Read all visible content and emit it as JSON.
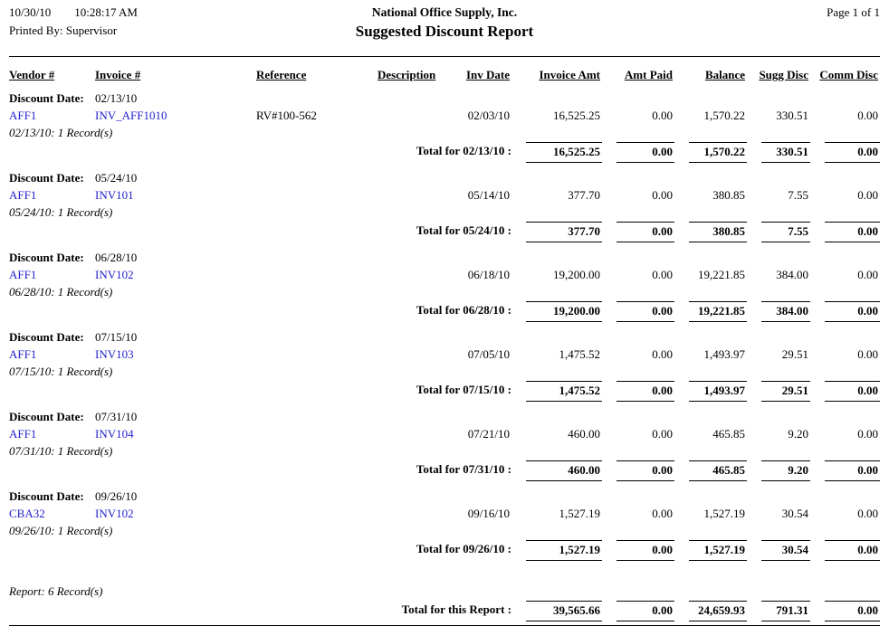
{
  "colors": {
    "link_blue": "#2222CC"
  },
  "header": {
    "date": "10/30/10",
    "time": "10:28:17 AM",
    "printed_by": "Printed By: Supervisor",
    "company": "National Office Supply, Inc.",
    "title": "Suggested Discount Report",
    "page": "Page 1 of  1"
  },
  "labels": {
    "discount_date": "Discount Date:"
  },
  "columns": [
    "Vendor #",
    "Invoice #",
    "Reference",
    "Description",
    "Inv Date",
    "Invoice Amt",
    "Amt Paid",
    "Balance",
    "Sugg Disc",
    "Comm Disc"
  ],
  "groups": [
    {
      "discount_date": "02/13/10",
      "rows": [
        {
          "vendor": "AFF1",
          "invoice": "INV_AFF1010",
          "reference": "RV#100-562",
          "description": "",
          "inv_date": "02/03/10",
          "invoice_amt": "16,525.25",
          "amt_paid": "0.00",
          "balance": "1,570.22",
          "sugg_disc": "330.51",
          "comm_disc": "0.00"
        }
      ],
      "record_note": "02/13/10: 1 Record(s)",
      "total_label": "Total for 02/13/10 :",
      "totals": {
        "invoice_amt": "16,525.25",
        "amt_paid": "0.00",
        "balance": "1,570.22",
        "sugg_disc": "330.51",
        "comm_disc": "0.00"
      }
    },
    {
      "discount_date": "05/24/10",
      "rows": [
        {
          "vendor": "AFF1",
          "invoice": "INV101",
          "reference": "",
          "description": "",
          "inv_date": "05/14/10",
          "invoice_amt": "377.70",
          "amt_paid": "0.00",
          "balance": "380.85",
          "sugg_disc": "7.55",
          "comm_disc": "0.00"
        }
      ],
      "record_note": "05/24/10: 1 Record(s)",
      "total_label": "Total for 05/24/10 :",
      "totals": {
        "invoice_amt": "377.70",
        "amt_paid": "0.00",
        "balance": "380.85",
        "sugg_disc": "7.55",
        "comm_disc": "0.00"
      }
    },
    {
      "discount_date": "06/28/10",
      "rows": [
        {
          "vendor": "AFF1",
          "invoice": "INV102",
          "reference": "",
          "description": "",
          "inv_date": "06/18/10",
          "invoice_amt": "19,200.00",
          "amt_paid": "0.00",
          "balance": "19,221.85",
          "sugg_disc": "384.00",
          "comm_disc": "0.00"
        }
      ],
      "record_note": "06/28/10: 1 Record(s)",
      "total_label": "Total for 06/28/10 :",
      "totals": {
        "invoice_amt": "19,200.00",
        "amt_paid": "0.00",
        "balance": "19,221.85",
        "sugg_disc": "384.00",
        "comm_disc": "0.00"
      }
    },
    {
      "discount_date": "07/15/10",
      "rows": [
        {
          "vendor": "AFF1",
          "invoice": "INV103",
          "reference": "",
          "description": "",
          "inv_date": "07/05/10",
          "invoice_amt": "1,475.52",
          "amt_paid": "0.00",
          "balance": "1,493.97",
          "sugg_disc": "29.51",
          "comm_disc": "0.00"
        }
      ],
      "record_note": "07/15/10: 1 Record(s)",
      "total_label": "Total for 07/15/10 :",
      "totals": {
        "invoice_amt": "1,475.52",
        "amt_paid": "0.00",
        "balance": "1,493.97",
        "sugg_disc": "29.51",
        "comm_disc": "0.00"
      }
    },
    {
      "discount_date": "07/31/10",
      "rows": [
        {
          "vendor": "AFF1",
          "invoice": "INV104",
          "reference": "",
          "description": "",
          "inv_date": "07/21/10",
          "invoice_amt": "460.00",
          "amt_paid": "0.00",
          "balance": "465.85",
          "sugg_disc": "9.20",
          "comm_disc": "0.00"
        }
      ],
      "record_note": "07/31/10: 1 Record(s)",
      "total_label": "Total for 07/31/10 :",
      "totals": {
        "invoice_amt": "460.00",
        "amt_paid": "0.00",
        "balance": "465.85",
        "sugg_disc": "9.20",
        "comm_disc": "0.00"
      }
    },
    {
      "discount_date": "09/26/10",
      "rows": [
        {
          "vendor": "CBA32",
          "invoice": "INV102",
          "reference": "",
          "description": "",
          "inv_date": "09/16/10",
          "invoice_amt": "1,527.19",
          "amt_paid": "0.00",
          "balance": "1,527.19",
          "sugg_disc": "30.54",
          "comm_disc": "0.00"
        }
      ],
      "record_note": "09/26/10: 1 Record(s)",
      "total_label": "Total for 09/26/10 :",
      "totals": {
        "invoice_amt": "1,527.19",
        "amt_paid": "0.00",
        "balance": "1,527.19",
        "sugg_disc": "30.54",
        "comm_disc": "0.00"
      }
    }
  ],
  "footer": {
    "record_note": "Report: 6 Record(s)",
    "total_label": "Total for this Report :",
    "totals": {
      "invoice_amt": "39,565.66",
      "amt_paid": "0.00",
      "balance": "24,659.93",
      "sugg_disc": "791.31",
      "comm_disc": "0.00"
    }
  }
}
